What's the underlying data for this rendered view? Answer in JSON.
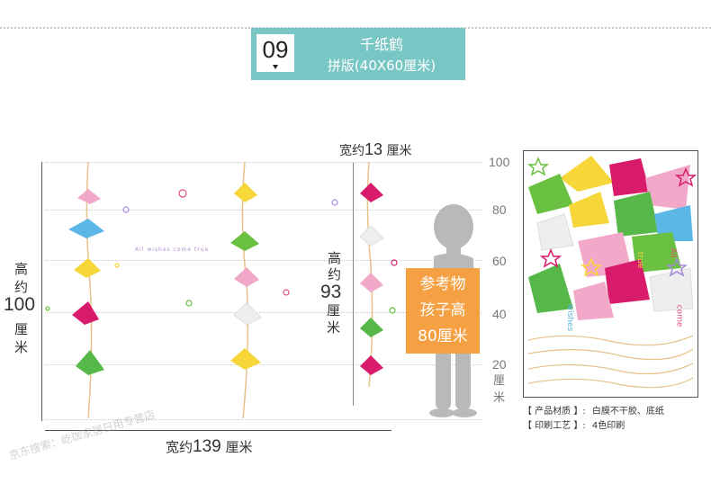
{
  "header": {
    "number": "09",
    "title": "千纸鹤",
    "subtitle": "拼版(40X60厘米)"
  },
  "dimensions": {
    "height_label_top": "高",
    "height_label_mid": "约",
    "height_value": "100",
    "height_unit": "厘米",
    "width_prefix": "宽约",
    "width_value": "139",
    "width_unit": "厘米",
    "strip_width_prefix": "宽约",
    "strip_width_value": "13",
    "strip_width_unit": "厘米",
    "strip_height_top": "高",
    "strip_height_mid": "约",
    "strip_height_value": "93",
    "strip_height_unit": "厘米"
  },
  "scale": {
    "ticks": [
      "100",
      "80",
      "60",
      "40",
      "20"
    ],
    "unit": "厘米"
  },
  "reference": {
    "line1": "参考物",
    "line2": "孩子高",
    "line3": "80厘米"
  },
  "scene_text": "All wishes come true",
  "preview_text": {
    "all": "All",
    "come": "come",
    "wishes": "wishes",
    "true": "true"
  },
  "product_info": {
    "material_label": "【 产品材质 】:",
    "material_value": "白膜不干胶、底纸",
    "print_label": "【 印刷工艺 】:",
    "print_value": "4色印刷"
  },
  "watermark": "京东搜索：屹珈家居日用专营店",
  "colors": {
    "header_bg": "#79c7c5",
    "callout_bg": "#f6a044",
    "string": "#e8c08a"
  }
}
